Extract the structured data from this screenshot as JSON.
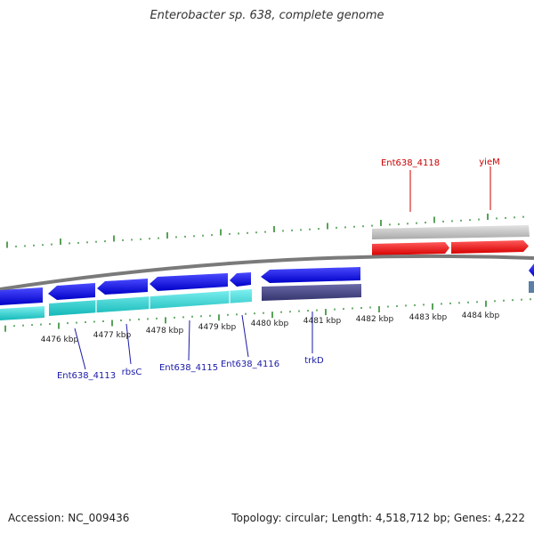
{
  "title": "Enterobacter sp. 638, complete genome",
  "footer": {
    "accession": "Accession: NC_009436",
    "summary": "Topology: circular; Length: 4,518,712 bp; Genes: 4,222"
  },
  "colors": {
    "tick": "#2e8b2e",
    "label_blue": "#1a1aa8",
    "label_red": "#cc0000",
    "backbone": "#808080"
  },
  "scale": {
    "ticks": [
      "4476 kbp",
      "4477 kbp",
      "4478 kbp",
      "4479 kbp",
      "4480 kbp",
      "4481 kbp",
      "4482 kbp",
      "4483 kbp",
      "4484 kbp"
    ]
  },
  "gene_labels": [
    {
      "text": "Ent638_4118",
      "color": "red"
    },
    {
      "text": "yieM",
      "color": "red"
    },
    {
      "text": "Ent638_4113",
      "color": "blue"
    },
    {
      "text": "rbsC",
      "color": "blue"
    },
    {
      "text": "Ent638_4115",
      "color": "blue"
    },
    {
      "text": "Ent638_4116",
      "color": "blue"
    },
    {
      "text": "trkD",
      "color": "blue"
    }
  ]
}
